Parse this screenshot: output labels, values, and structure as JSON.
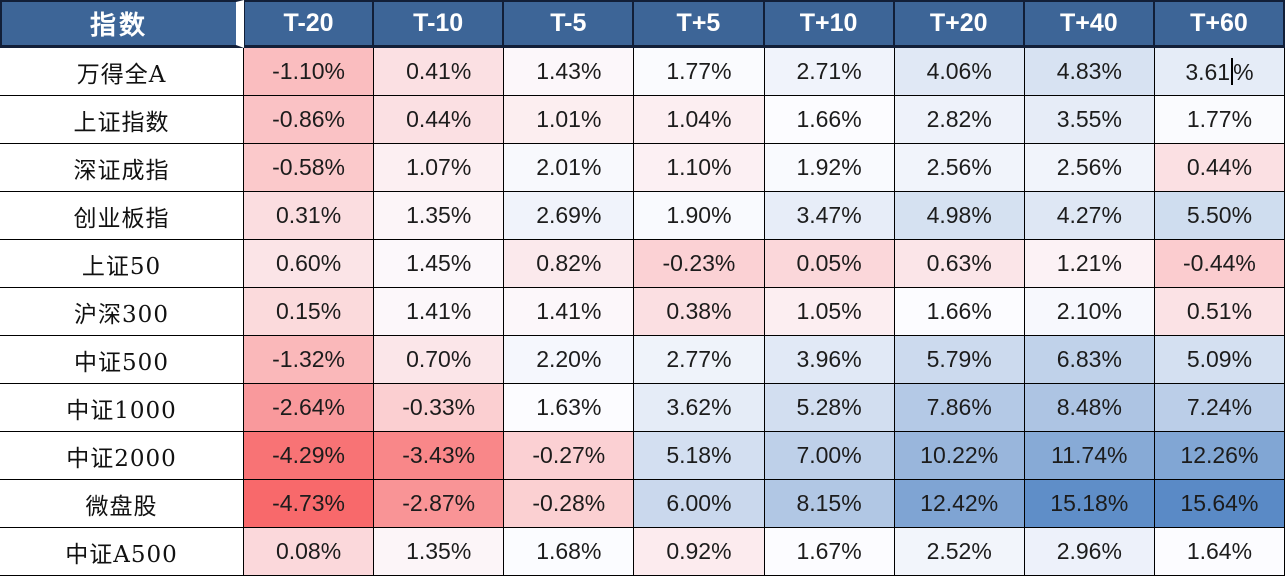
{
  "chart_data": {
    "type": "heatmap",
    "title": "",
    "index_label": "指数",
    "columns": [
      "T-20",
      "T-10",
      "T-5",
      "T+5",
      "T+10",
      "T+20",
      "T+40",
      "T+60"
    ],
    "unit": "%",
    "rows": [
      {
        "label": "万得全A",
        "values": [
          -1.1,
          0.41,
          1.43,
          1.77,
          2.71,
          4.06,
          4.83,
          3.61
        ]
      },
      {
        "label": "上证指数",
        "values": [
          -0.86,
          0.44,
          1.01,
          1.04,
          1.66,
          2.82,
          3.55,
          1.77
        ]
      },
      {
        "label": "深证成指",
        "values": [
          -0.58,
          1.07,
          2.01,
          1.1,
          1.92,
          2.56,
          2.56,
          0.44
        ]
      },
      {
        "label": "创业板指",
        "values": [
          0.31,
          1.35,
          2.69,
          1.9,
          3.47,
          4.98,
          4.27,
          5.5
        ]
      },
      {
        "label": "上证50",
        "values": [
          0.6,
          1.45,
          0.82,
          -0.23,
          0.05,
          0.63,
          1.21,
          -0.44
        ]
      },
      {
        "label": "沪深300",
        "values": [
          0.15,
          1.41,
          1.41,
          0.38,
          1.05,
          1.66,
          2.1,
          0.51
        ]
      },
      {
        "label": "中证500",
        "values": [
          -1.32,
          0.7,
          2.2,
          2.77,
          3.96,
          5.79,
          6.83,
          5.09
        ]
      },
      {
        "label": "中证1000",
        "values": [
          -2.64,
          -0.33,
          1.63,
          3.62,
          5.28,
          7.86,
          8.48,
          7.24
        ]
      },
      {
        "label": "中证2000",
        "values": [
          -4.29,
          -3.43,
          -0.27,
          5.18,
          7.0,
          10.22,
          11.74,
          12.26
        ]
      },
      {
        "label": "微盘股",
        "values": [
          -4.73,
          -2.87,
          -0.28,
          6.0,
          8.15,
          12.42,
          15.18,
          15.64
        ]
      },
      {
        "label": "中证A500",
        "values": [
          0.08,
          1.35,
          1.68,
          0.92,
          1.67,
          2.52,
          2.96,
          1.64
        ]
      }
    ],
    "colorscale": {
      "style": "3-color diverging (red-white-blue)",
      "min": -4.73,
      "mid": 1.635,
      "max": 15.64,
      "min_color": "#F8696B",
      "mid_color": "#FCFCFF",
      "max_color": "#5A8AC6"
    },
    "legend_position": "none",
    "grid": "on"
  },
  "colors": {
    "header_bg": "#3D6597",
    "header_text": "#FFFFFF",
    "header_grid": "#121F38",
    "body_grid": "#000000",
    "label_text": "#111111",
    "value_text": "#1C1C1C",
    "background": "#FFFFFF"
  },
  "cursor": {
    "row_index": 0,
    "col_index": 7
  }
}
